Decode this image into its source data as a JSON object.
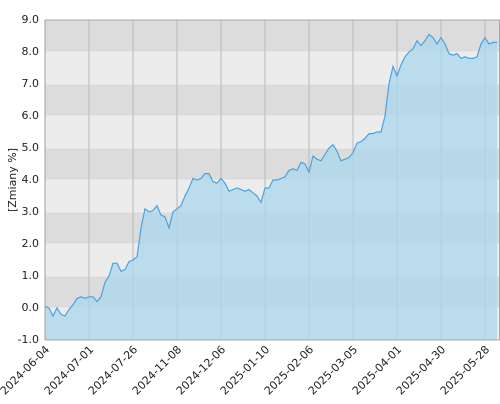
{
  "chart_data": {
    "type": "area",
    "y_label": "[Zmiany %]",
    "categories": [
      "2024-06-04",
      null,
      null,
      null,
      null,
      null,
      null,
      null,
      null,
      null,
      null,
      "2024-07-01",
      null,
      null,
      null,
      null,
      null,
      null,
      null,
      null,
      null,
      null,
      "2024-07-26",
      null,
      null,
      null,
      null,
      null,
      null,
      null,
      null,
      null,
      null,
      "2024-11-08",
      null,
      null,
      null,
      null,
      null,
      null,
      null,
      null,
      null,
      null,
      "2024-12-06",
      null,
      null,
      null,
      null,
      null,
      null,
      null,
      null,
      null,
      null,
      "2025-01-10",
      null,
      null,
      null,
      null,
      null,
      null,
      null,
      null,
      null,
      null,
      "2025-02-06",
      null,
      null,
      null,
      null,
      null,
      null,
      null,
      null,
      null,
      null,
      "2025-03-05",
      null,
      null,
      null,
      null,
      null,
      null,
      null,
      null,
      null,
      null,
      "2025-04-01",
      null,
      null,
      null,
      null,
      null,
      null,
      null,
      null,
      null,
      null,
      "2025-04-30",
      null,
      null,
      null,
      null,
      null,
      null,
      null,
      null,
      null,
      null,
      "2025-05-28",
      null,
      null,
      null
    ],
    "values": [
      0.05,
      0.0,
      -0.25,
      0.0,
      -0.2,
      -0.25,
      -0.05,
      0.1,
      0.3,
      0.35,
      0.3,
      0.35,
      0.35,
      0.2,
      0.35,
      0.8,
      1.0,
      1.4,
      1.4,
      1.15,
      1.2,
      1.45,
      1.5,
      1.6,
      2.5,
      3.1,
      3.0,
      3.05,
      3.2,
      2.9,
      2.85,
      2.5,
      3.0,
      3.1,
      3.2,
      3.5,
      3.75,
      4.05,
      4.0,
      4.05,
      4.2,
      4.2,
      3.95,
      3.9,
      4.05,
      3.9,
      3.65,
      3.7,
      3.75,
      3.7,
      3.65,
      3.7,
      3.6,
      3.5,
      3.3,
      3.75,
      3.75,
      4.0,
      4.0,
      4.05,
      4.1,
      4.3,
      4.35,
      4.3,
      4.55,
      4.5,
      4.25,
      4.75,
      4.65,
      4.6,
      4.8,
      5.0,
      5.1,
      4.9,
      4.6,
      4.65,
      4.7,
      4.85,
      5.15,
      5.2,
      5.3,
      5.45,
      5.45,
      5.5,
      5.5,
      6.0,
      7.0,
      7.55,
      7.25,
      7.6,
      7.85,
      8.0,
      8.1,
      8.35,
      8.2,
      8.35,
      8.55,
      8.45,
      8.25,
      8.45,
      8.25,
      7.95,
      7.9,
      7.95,
      7.8,
      7.85,
      7.8,
      7.8,
      7.85,
      8.25,
      8.45,
      8.25,
      8.3,
      8.3
    ],
    "color": "#4ba3e0",
    "fill": "#a9d7ee",
    "ylim": [
      -1,
      9
    ],
    "yticks": [
      {
        "value": -1,
        "label": "-1.0"
      },
      {
        "value": 0,
        "label": "0.0"
      },
      {
        "value": 1,
        "label": "1.0"
      },
      {
        "value": 2,
        "label": "2.0"
      },
      {
        "value": 3,
        "label": "3.0"
      },
      {
        "value": 4,
        "label": "4.0"
      },
      {
        "value": 5,
        "label": "5.0"
      },
      {
        "value": 6,
        "label": "6.0"
      },
      {
        "value": 7,
        "label": "7.0"
      },
      {
        "value": 8,
        "label": "8.0"
      },
      {
        "value": 9,
        "label": "9.0"
      }
    ],
    "grid": true
  }
}
